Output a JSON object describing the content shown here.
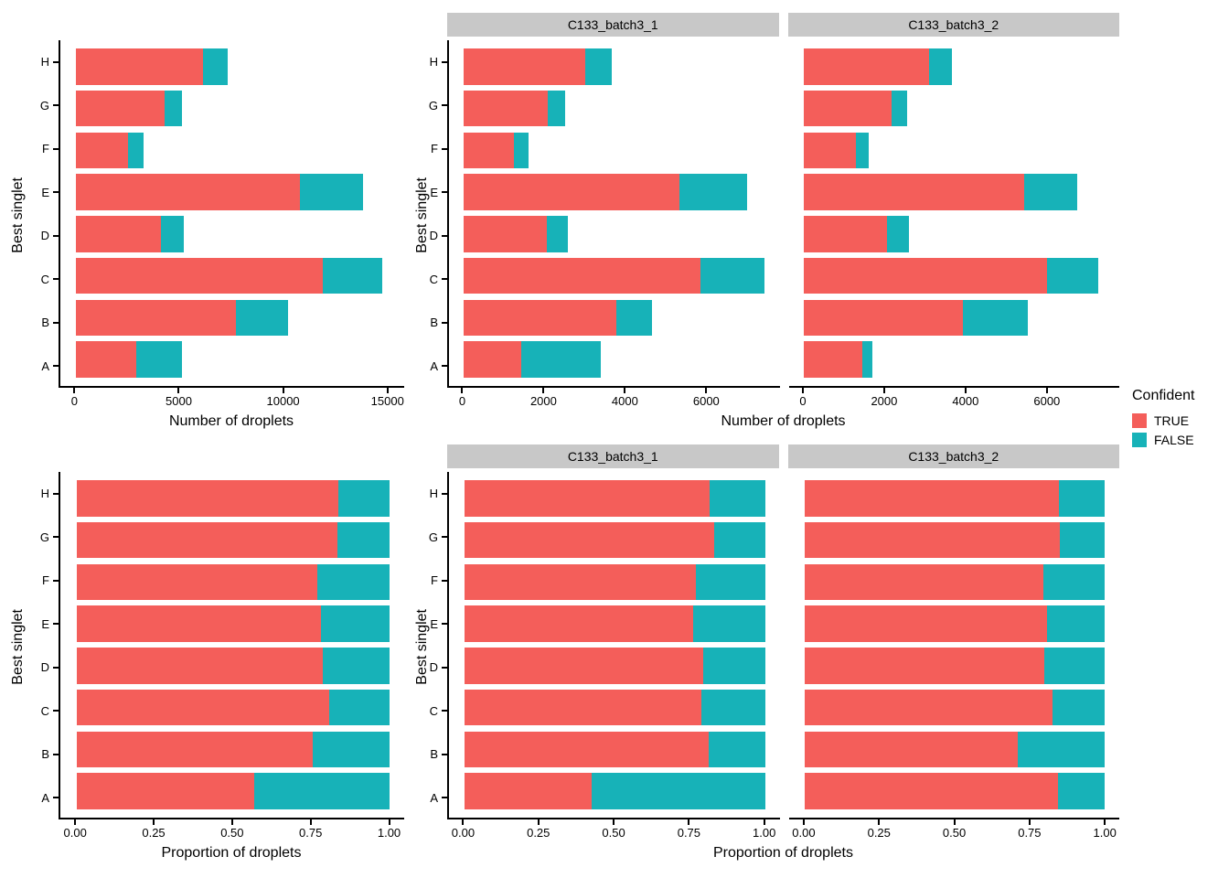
{
  "palette": {
    "series_colors": {
      "TRUE": "#F45E5A",
      "FALSE": "#17B2B8"
    },
    "strip_background": "#C8C8C8",
    "axis_color": "#000000",
    "background": "#FFFFFF"
  },
  "legend": {
    "title": "Confident",
    "position": "right",
    "items": [
      {
        "label": "TRUE",
        "series": "TRUE"
      },
      {
        "label": "FALSE",
        "series": "FALSE"
      }
    ]
  },
  "chart_data": [
    {
      "id": "counts-overall",
      "type": "bar",
      "orientation": "horizontal",
      "stacked": true,
      "grid": false,
      "theme": "classic",
      "ylabel": "Best singlet",
      "xlabel": "Number of droplets",
      "categories": [
        "H",
        "G",
        "F",
        "E",
        "D",
        "C",
        "B",
        "A"
      ],
      "series": [
        {
          "name": "TRUE",
          "values": [
            6100,
            4250,
            2500,
            10800,
            4100,
            11900,
            7700,
            2900
          ]
        },
        {
          "name": "FALSE",
          "values": [
            1200,
            850,
            750,
            3000,
            1100,
            2850,
            2500,
            2200
          ]
        }
      ],
      "xticks": [
        0,
        5000,
        10000,
        15000
      ],
      "xtick_labels": [
        "0",
        "5000",
        "10000",
        "15000"
      ],
      "xlim": [
        -760,
        15800
      ]
    },
    {
      "id": "counts-by-sample",
      "type": "bar",
      "orientation": "horizontal",
      "stacked": true,
      "grid": false,
      "theme": "classic",
      "ylabel": "Best singlet",
      "xlabel": "Number of droplets",
      "categories": [
        "H",
        "G",
        "F",
        "E",
        "D",
        "C",
        "B",
        "A"
      ],
      "facets": [
        {
          "label": "C133_batch3_1",
          "series": [
            {
              "name": "TRUE",
              "values": [
                2980,
                2070,
                1230,
                5310,
                2040,
                5825,
                3760,
                1420
              ]
            },
            {
              "name": "FALSE",
              "values": [
                670,
                420,
                360,
                1675,
                525,
                1575,
                865,
                1950
              ]
            }
          ]
        },
        {
          "label": "C133_batch3_2",
          "series": [
            {
              "name": "TRUE",
              "values": [
                3090,
                2165,
                1280,
                5445,
                2065,
                6010,
                3925,
                1435
              ]
            },
            {
              "name": "FALSE",
              "values": [
                555,
                380,
                330,
                1305,
                525,
                1255,
                1595,
                265
              ]
            }
          ]
        }
      ],
      "xticks": [
        0,
        2000,
        4000,
        6000
      ],
      "xtick_labels": [
        "0",
        "2000",
        "4000",
        "6000"
      ],
      "xlim": [
        -370,
        7780
      ]
    },
    {
      "id": "proportion-overall",
      "type": "bar",
      "orientation": "horizontal",
      "stacked": true,
      "grid": false,
      "theme": "classic",
      "ylabel": "Best singlet",
      "xlabel": "Proportion of droplets",
      "categories": [
        "H",
        "G",
        "F",
        "E",
        "D",
        "C",
        "B",
        "A"
      ],
      "series": [
        {
          "name": "TRUE",
          "values": [
            0.836,
            0.833,
            0.769,
            0.783,
            0.788,
            0.807,
            0.755,
            0.569
          ]
        },
        {
          "name": "FALSE",
          "values": [
            0.164,
            0.167,
            0.231,
            0.217,
            0.212,
            0.193,
            0.245,
            0.431
          ]
        }
      ],
      "xticks": [
        0,
        0.25,
        0.5,
        0.75,
        1
      ],
      "xtick_labels": [
        "0.00",
        "0.25",
        "0.50",
        "0.75",
        "1.00"
      ],
      "xlim": [
        -0.053,
        1.048
      ]
    },
    {
      "id": "proportion-by-sample",
      "type": "bar",
      "orientation": "horizontal",
      "stacked": true,
      "grid": false,
      "theme": "classic",
      "ylabel": "Best singlet",
      "xlabel": "Proportion of droplets",
      "categories": [
        "H",
        "G",
        "F",
        "E",
        "D",
        "C",
        "B",
        "A"
      ],
      "facets": [
        {
          "label": "C133_batch3_1",
          "series": [
            {
              "name": "TRUE",
              "values": [
                0.816,
                0.831,
                0.77,
                0.76,
                0.795,
                0.787,
                0.813,
                0.421
              ]
            },
            {
              "name": "FALSE",
              "values": [
                0.184,
                0.169,
                0.23,
                0.24,
                0.205,
                0.213,
                0.187,
                0.579
              ]
            }
          ]
        },
        {
          "label": "C133_batch3_2",
          "series": [
            {
              "name": "TRUE",
              "values": [
                0.848,
                0.851,
                0.795,
                0.807,
                0.797,
                0.827,
                0.711,
                0.844
              ]
            },
            {
              "name": "FALSE",
              "values": [
                0.152,
                0.149,
                0.205,
                0.193,
                0.203,
                0.173,
                0.289,
                0.156
              ]
            }
          ]
        }
      ],
      "xticks": [
        0,
        0.25,
        0.5,
        0.75,
        1
      ],
      "xtick_labels": [
        "0.00",
        "0.25",
        "0.50",
        "0.75",
        "1.00"
      ],
      "xlim": [
        -0.053,
        1.048
      ]
    }
  ]
}
